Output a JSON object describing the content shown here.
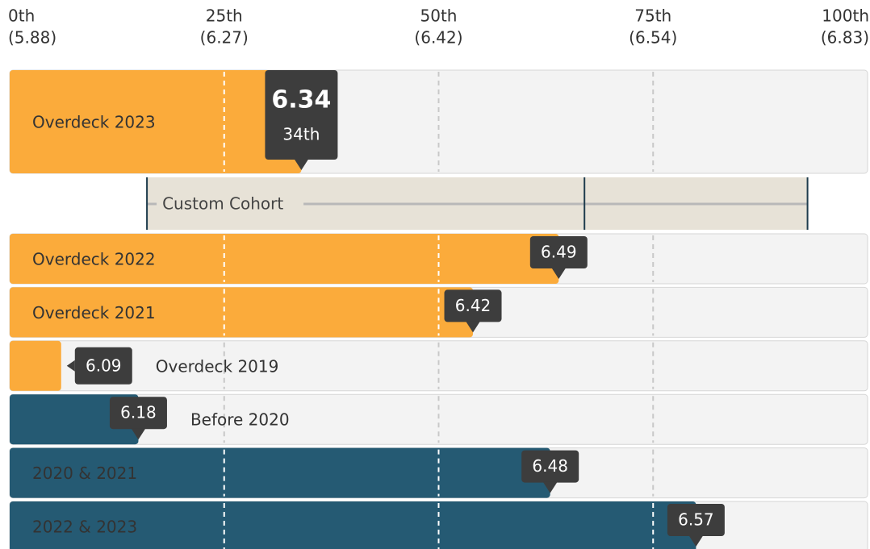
{
  "chart_data": {
    "type": "percentile-bar",
    "xlim": [
      0,
      100
    ],
    "xticks": [
      {
        "value": 0,
        "label": "0th",
        "score": "(5.88)"
      },
      {
        "value": 25,
        "label": "25th",
        "score": "(6.27)"
      },
      {
        "value": 50,
        "label": "50th",
        "score": "(6.42)"
      },
      {
        "value": 75,
        "label": "75th",
        "score": "(6.54)"
      },
      {
        "value": 100,
        "label": "100th",
        "score": "(6.83)"
      }
    ],
    "grid_ticks": [
      1,
      2,
      3
    ],
    "highlight": {
      "name": "Overdeck 2023",
      "color": "#fbab3b",
      "percentile": 34,
      "value": 6.34,
      "percentile_label": "34th"
    },
    "cohort": {
      "name": "Custom Cohort",
      "range": [
        16,
        93
      ],
      "marker": 67
    },
    "series": [
      {
        "name": "Overdeck 2022",
        "color": "#fbab3b",
        "percentile": 64,
        "value": 6.49
      },
      {
        "name": "Overdeck 2021",
        "color": "#fbab3b",
        "percentile": 54,
        "value": 6.42
      },
      {
        "name": "Overdeck 2019",
        "color": "#fbab3b",
        "percentile": 6,
        "value": 6.09
      },
      {
        "name": "Before 2020",
        "color": "#255a73",
        "percentile": 15,
        "value": 6.18
      },
      {
        "name": "2020 & 2021",
        "color": "#255a73",
        "percentile": 63,
        "value": 6.48
      },
      {
        "name": "2022 & 2023",
        "color": "#255a73",
        "percentile": 80,
        "value": 6.57
      }
    ]
  }
}
